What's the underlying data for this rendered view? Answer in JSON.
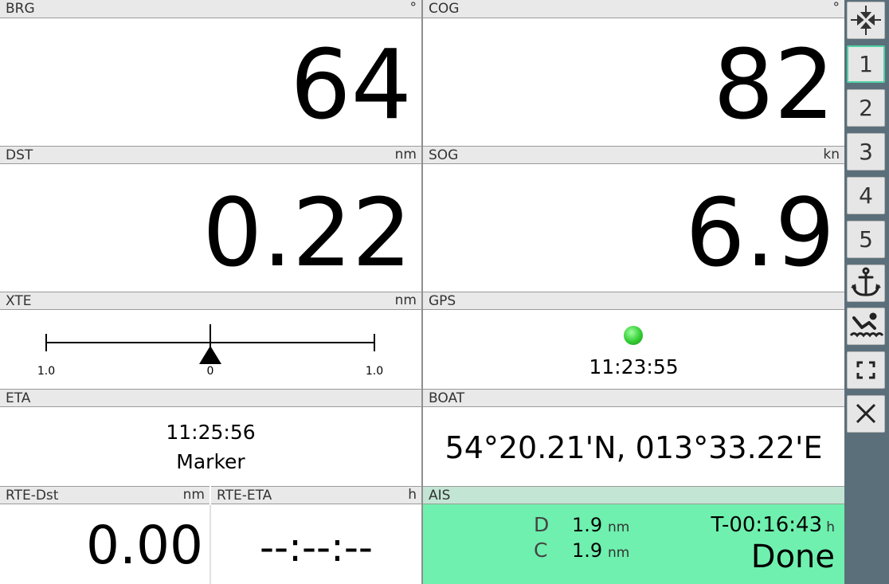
{
  "panels": {
    "brg": {
      "label": "BRG",
      "unit": "°",
      "value": "64"
    },
    "cog": {
      "label": "COG",
      "unit": "°",
      "value": "82"
    },
    "dst": {
      "label": "DST",
      "unit": "nm",
      "value": "0.22"
    },
    "sog": {
      "label": "SOG",
      "unit": "kn",
      "value": "6.9"
    },
    "xte": {
      "label": "XTE",
      "unit": "nm",
      "left_tick": "1.0",
      "center_tick": "0",
      "right_tick": "1.0",
      "offset_fraction": 0.0
    },
    "gps": {
      "label": "GPS",
      "time": "11:23:55",
      "status_color": "#33cc33"
    },
    "eta": {
      "label": "ETA",
      "time": "11:25:56",
      "target": "Marker"
    },
    "boat": {
      "label": "BOAT",
      "position": "54°20.21'N, 013°33.22'E"
    },
    "rte_dst": {
      "label": "RTE-Dst",
      "unit": "nm",
      "value": "0.00"
    },
    "rte_eta": {
      "label": "RTE-ETA",
      "unit": "h",
      "value": "--:--:--"
    },
    "ais": {
      "label": "AIS",
      "d_label": "D",
      "d_value": "1.9",
      "d_unit": "nm",
      "c_label": "C",
      "c_value": "1.9",
      "c_unit": "nm",
      "t_value": "T-00:16:43",
      "t_unit": "h",
      "status": "Done",
      "bg_color": "#6ff0ae"
    }
  },
  "sidebar": {
    "buttons": [
      {
        "icon": "compress-arrows-icon"
      },
      {
        "label": "1",
        "active": true
      },
      {
        "label": "2"
      },
      {
        "label": "3"
      },
      {
        "label": "4"
      },
      {
        "label": "5"
      },
      {
        "icon": "anchor-icon"
      },
      {
        "icon": "man-overboard-icon"
      },
      {
        "icon": "fullscreen-icon"
      },
      {
        "icon": "close-icon"
      }
    ]
  }
}
